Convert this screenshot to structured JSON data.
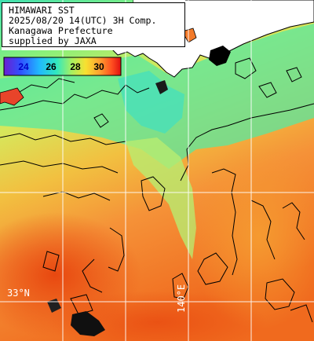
{
  "title": {
    "lines": [
      "HIMAWARI SST",
      "2025/08/20 14(UTC) 3H Comp.",
      "Kanagawa Prefecture",
      "supplied by JAXA"
    ]
  },
  "legend": {
    "labels": [
      "24",
      "26",
      "28",
      "30"
    ],
    "label_colors": [
      "#0000c8",
      "#000000",
      "#000000",
      "#000000"
    ],
    "gradient_stops": [
      "#6a20d0",
      "#3050ff",
      "#20b8ff",
      "#30e8c0",
      "#a8f060",
      "#f8e030",
      "#ffa030",
      "#ff5020",
      "#e01010"
    ]
  },
  "grid_labels": {
    "latitude": "33°N",
    "longitude": "140°E"
  },
  "colors": {
    "land": "#ffffff",
    "coast": "#000000",
    "gridline": "#ffffff",
    "sst_cool": "#52e8a8",
    "sst_mid": "#d8e860",
    "sst_warm": "#f59b3a",
    "sst_hot": "#f26a1c",
    "missing_data": "#000000"
  }
}
